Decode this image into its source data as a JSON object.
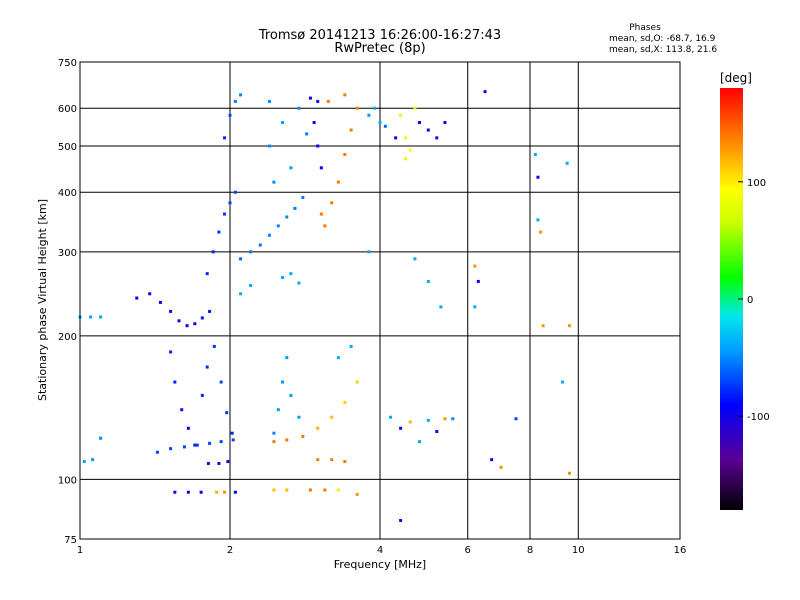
{
  "chart_data": {
    "type": "scatter",
    "title": "Tromsø 20141213 16:26:00-16:27:43",
    "subtitle": "RwPretec (8p)",
    "xlabel": "Frequency [MHz]",
    "ylabel": "Stationary phase Virtual Height [km]",
    "x_scale": "log",
    "y_scale": "log",
    "xlim": [
      1,
      16
    ],
    "ylim": [
      75,
      750
    ],
    "x_ticks": [
      1,
      2,
      4,
      6,
      8,
      10,
      16
    ],
    "x_tick_labels": [
      "1",
      "2",
      "4",
      "6",
      "8",
      "10",
      "16"
    ],
    "y_ticks": [
      75,
      100,
      200,
      300,
      400,
      500,
      600,
      750
    ],
    "y_tick_labels": [
      "75",
      "100",
      "200",
      "300",
      "400",
      "500",
      "600",
      "750"
    ],
    "grid": true,
    "phase_stats": {
      "heading": "Phases",
      "line_o": "mean, sd,O: -68.7, 16.9",
      "line_x": "mean, sd,X: 113.8, 21.6"
    },
    "colorbar": {
      "label": "[deg]",
      "range": [
        -180,
        180
      ],
      "ticks": [
        100,
        0,
        -100
      ],
      "tick_labels": [
        "100",
        "0",
        "-100"
      ],
      "colormap": "rainbow"
    },
    "series": [
      {
        "values": [
          {
            "x": 1.0,
            "y": 219,
            "phase": -40
          },
          {
            "x": 1.05,
            "y": 219,
            "phase": -40
          },
          {
            "x": 1.1,
            "y": 219,
            "phase": -40
          },
          {
            "x": 1.02,
            "y": 109,
            "phase": -45
          },
          {
            "x": 1.06,
            "y": 110,
            "phase": -45
          },
          {
            "x": 1.1,
            "y": 122,
            "phase": -50
          },
          {
            "x": 1.3,
            "y": 240,
            "phase": -90
          },
          {
            "x": 1.38,
            "y": 245,
            "phase": -95
          },
          {
            "x": 1.45,
            "y": 235,
            "phase": -100
          },
          {
            "x": 1.52,
            "y": 225,
            "phase": -105
          },
          {
            "x": 1.58,
            "y": 215,
            "phase": -100
          },
          {
            "x": 1.64,
            "y": 210,
            "phase": -95
          },
          {
            "x": 1.7,
            "y": 212,
            "phase": -90
          },
          {
            "x": 1.76,
            "y": 218,
            "phase": -85
          },
          {
            "x": 1.82,
            "y": 225,
            "phase": -85
          },
          {
            "x": 1.52,
            "y": 185,
            "phase": -80
          },
          {
            "x": 1.55,
            "y": 160,
            "phase": -80
          },
          {
            "x": 1.6,
            "y": 140,
            "phase": -85
          },
          {
            "x": 1.65,
            "y": 128,
            "phase": -90
          },
          {
            "x": 1.7,
            "y": 118,
            "phase": -85
          },
          {
            "x": 1.76,
            "y": 150,
            "phase": -80
          },
          {
            "x": 1.8,
            "y": 172,
            "phase": -80
          },
          {
            "x": 1.86,
            "y": 190,
            "phase": -75
          },
          {
            "x": 1.92,
            "y": 160,
            "phase": -70
          },
          {
            "x": 1.97,
            "y": 138,
            "phase": -75
          },
          {
            "x": 2.02,
            "y": 125,
            "phase": -80
          },
          {
            "x": 1.43,
            "y": 114,
            "phase": -70
          },
          {
            "x": 1.52,
            "y": 116,
            "phase": -70
          },
          {
            "x": 1.62,
            "y": 117,
            "phase": -70
          },
          {
            "x": 1.72,
            "y": 118,
            "phase": -70
          },
          {
            "x": 1.82,
            "y": 119,
            "phase": -70
          },
          {
            "x": 1.92,
            "y": 120,
            "phase": -70
          },
          {
            "x": 2.03,
            "y": 121,
            "phase": -70
          },
          {
            "x": 1.81,
            "y": 108,
            "phase": -110
          },
          {
            "x": 1.9,
            "y": 108,
            "phase": -110
          },
          {
            "x": 1.98,
            "y": 109,
            "phase": -110
          },
          {
            "x": 1.55,
            "y": 94,
            "phase": -100
          },
          {
            "x": 1.65,
            "y": 94,
            "phase": -100
          },
          {
            "x": 1.75,
            "y": 94,
            "phase": -90
          },
          {
            "x": 1.88,
            "y": 94,
            "phase": 120
          },
          {
            "x": 1.95,
            "y": 94,
            "phase": 130
          },
          {
            "x": 2.05,
            "y": 94,
            "phase": -90
          },
          {
            "x": 1.8,
            "y": 270,
            "phase": -80
          },
          {
            "x": 1.85,
            "y": 300,
            "phase": -80
          },
          {
            "x": 1.9,
            "y": 330,
            "phase": -75
          },
          {
            "x": 1.95,
            "y": 360,
            "phase": -75
          },
          {
            "x": 2.0,
            "y": 380,
            "phase": -70
          },
          {
            "x": 2.05,
            "y": 400,
            "phase": -70
          },
          {
            "x": 2.1,
            "y": 290,
            "phase": -60
          },
          {
            "x": 2.2,
            "y": 300,
            "phase": -55
          },
          {
            "x": 2.3,
            "y": 310,
            "phase": -55
          },
          {
            "x": 2.4,
            "y": 325,
            "phase": -50
          },
          {
            "x": 2.5,
            "y": 340,
            "phase": -50
          },
          {
            "x": 2.6,
            "y": 355,
            "phase": -50
          },
          {
            "x": 2.7,
            "y": 370,
            "phase": -55
          },
          {
            "x": 2.8,
            "y": 390,
            "phase": -55
          },
          {
            "x": 1.95,
            "y": 520,
            "phase": -80
          },
          {
            "x": 2.0,
            "y": 580,
            "phase": -70
          },
          {
            "x": 2.05,
            "y": 620,
            "phase": -55
          },
          {
            "x": 2.1,
            "y": 640,
            "phase": -50
          },
          {
            "x": 2.4,
            "y": 620,
            "phase": -50
          },
          {
            "x": 2.4,
            "y": 500,
            "phase": -50
          },
          {
            "x": 2.45,
            "y": 420,
            "phase": -50
          },
          {
            "x": 2.55,
            "y": 560,
            "phase": -45
          },
          {
            "x": 2.65,
            "y": 450,
            "phase": -45
          },
          {
            "x": 2.75,
            "y": 600,
            "phase": -50
          },
          {
            "x": 2.85,
            "y": 530,
            "phase": -55
          },
          {
            "x": 2.45,
            "y": 125,
            "phase": -50
          },
          {
            "x": 2.5,
            "y": 140,
            "phase": -45
          },
          {
            "x": 2.55,
            "y": 160,
            "phase": -45
          },
          {
            "x": 2.6,
            "y": 180,
            "phase": -45
          },
          {
            "x": 2.65,
            "y": 150,
            "phase": -45
          },
          {
            "x": 2.75,
            "y": 135,
            "phase": -45
          },
          {
            "x": 2.9,
            "y": 630,
            "phase": -100
          },
          {
            "x": 2.95,
            "y": 560,
            "phase": -95
          },
          {
            "x": 3.0,
            "y": 500,
            "phase": -95
          },
          {
            "x": 3.05,
            "y": 450,
            "phase": -90
          },
          {
            "x": 3.0,
            "y": 620,
            "phase": -85
          },
          {
            "x": 3.05,
            "y": 360,
            "phase": 140
          },
          {
            "x": 3.1,
            "y": 340,
            "phase": 140
          },
          {
            "x": 3.2,
            "y": 380,
            "phase": 140
          },
          {
            "x": 3.3,
            "y": 420,
            "phase": 140
          },
          {
            "x": 3.4,
            "y": 480,
            "phase": 140
          },
          {
            "x": 3.5,
            "y": 540,
            "phase": 140
          },
          {
            "x": 3.6,
            "y": 600,
            "phase": 140
          },
          {
            "x": 3.15,
            "y": 620,
            "phase": 140
          },
          {
            "x": 3.4,
            "y": 640,
            "phase": 140
          },
          {
            "x": 2.45,
            "y": 120,
            "phase": 140
          },
          {
            "x": 2.6,
            "y": 121,
            "phase": 140
          },
          {
            "x": 2.8,
            "y": 123,
            "phase": 140
          },
          {
            "x": 3.0,
            "y": 128,
            "phase": 120
          },
          {
            "x": 3.2,
            "y": 135,
            "phase": 115
          },
          {
            "x": 3.4,
            "y": 145,
            "phase": 110
          },
          {
            "x": 3.6,
            "y": 160,
            "phase": 110
          },
          {
            "x": 3.3,
            "y": 180,
            "phase": -40
          },
          {
            "x": 3.5,
            "y": 190,
            "phase": -40
          },
          {
            "x": 3.0,
            "y": 110,
            "phase": 140
          },
          {
            "x": 3.2,
            "y": 110,
            "phase": 140
          },
          {
            "x": 3.4,
            "y": 109,
            "phase": 140
          },
          {
            "x": 2.45,
            "y": 95,
            "phase": 115
          },
          {
            "x": 2.6,
            "y": 95,
            "phase": 115
          },
          {
            "x": 2.9,
            "y": 95,
            "phase": 140
          },
          {
            "x": 3.1,
            "y": 95,
            "phase": 140
          },
          {
            "x": 3.3,
            "y": 95,
            "phase": 100
          },
          {
            "x": 2.55,
            "y": 265,
            "phase": -40
          },
          {
            "x": 2.65,
            "y": 270,
            "phase": -40
          },
          {
            "x": 2.75,
            "y": 258,
            "phase": -40
          },
          {
            "x": 2.1,
            "y": 245,
            "phase": -40
          },
          {
            "x": 2.2,
            "y": 255,
            "phase": -40
          },
          {
            "x": 3.8,
            "y": 580,
            "phase": -45
          },
          {
            "x": 3.9,
            "y": 600,
            "phase": -40
          },
          {
            "x": 4.0,
            "y": 560,
            "phase": -40
          },
          {
            "x": 4.1,
            "y": 550,
            "phase": -60
          },
          {
            "x": 4.3,
            "y": 520,
            "phase": -90
          },
          {
            "x": 4.4,
            "y": 580,
            "phase": 80
          },
          {
            "x": 4.5,
            "y": 520,
            "phase": 90
          },
          {
            "x": 4.6,
            "y": 490,
            "phase": 95
          },
          {
            "x": 4.7,
            "y": 600,
            "phase": 85
          },
          {
            "x": 4.8,
            "y": 560,
            "phase": -100
          },
          {
            "x": 5.0,
            "y": 540,
            "phase": -90
          },
          {
            "x": 5.2,
            "y": 520,
            "phase": -100
          },
          {
            "x": 5.4,
            "y": 560,
            "phase": -90
          },
          {
            "x": 4.5,
            "y": 470,
            "phase": 85
          },
          {
            "x": 4.2,
            "y": 135,
            "phase": -40
          },
          {
            "x": 4.4,
            "y": 128,
            "phase": -100
          },
          {
            "x": 4.6,
            "y": 132,
            "phase": 120
          },
          {
            "x": 4.8,
            "y": 120,
            "phase": -40
          },
          {
            "x": 5.0,
            "y": 133,
            "phase": -40
          },
          {
            "x": 5.2,
            "y": 126,
            "phase": -100
          },
          {
            "x": 5.4,
            "y": 134,
            "phase": 130
          },
          {
            "x": 5.6,
            "y": 134,
            "phase": -50
          },
          {
            "x": 3.8,
            "y": 300,
            "phase": -40
          },
          {
            "x": 4.7,
            "y": 290,
            "phase": -40
          },
          {
            "x": 5.3,
            "y": 230,
            "phase": -40
          },
          {
            "x": 5.0,
            "y": 260,
            "phase": -40
          },
          {
            "x": 6.2,
            "y": 280,
            "phase": 130
          },
          {
            "x": 6.3,
            "y": 260,
            "phase": -100
          },
          {
            "x": 6.2,
            "y": 230,
            "phase": -40
          },
          {
            "x": 6.5,
            "y": 650,
            "phase": -100
          },
          {
            "x": 6.7,
            "y": 110,
            "phase": -100
          },
          {
            "x": 7.0,
            "y": 106,
            "phase": 130
          },
          {
            "x": 7.5,
            "y": 134,
            "phase": -70
          },
          {
            "x": 8.2,
            "y": 480,
            "phase": -40
          },
          {
            "x": 8.3,
            "y": 350,
            "phase": -40
          },
          {
            "x": 8.4,
            "y": 330,
            "phase": 130
          },
          {
            "x": 8.5,
            "y": 210,
            "phase": 130
          },
          {
            "x": 8.3,
            "y": 430,
            "phase": -100
          },
          {
            "x": 9.5,
            "y": 460,
            "phase": -40
          },
          {
            "x": 9.6,
            "y": 210,
            "phase": 130
          },
          {
            "x": 9.3,
            "y": 160,
            "phase": -40
          },
          {
            "x": 9.6,
            "y": 103,
            "phase": 130
          },
          {
            "x": 4.4,
            "y": 82,
            "phase": -100
          },
          {
            "x": 3.6,
            "y": 93,
            "phase": 130
          }
        ]
      }
    ]
  }
}
